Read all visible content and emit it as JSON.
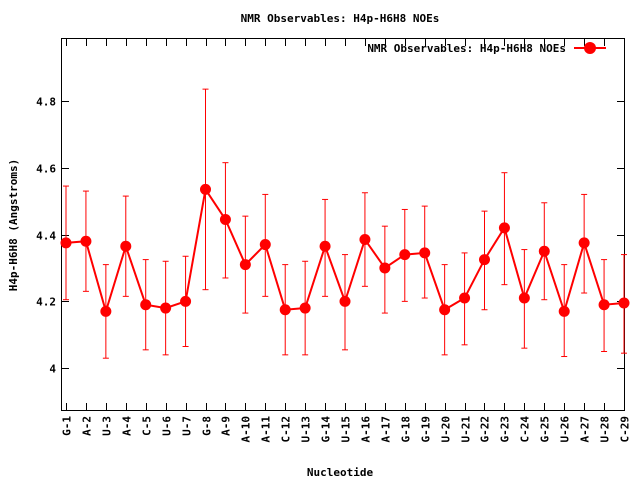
{
  "chart_data": {
    "type": "line",
    "title": "NMR Observables: H4p-H6H8 NOEs",
    "xlabel": "Nucleotide",
    "ylabel": "H4p-H6H8 (Angstroms)",
    "ylim": [
      3.875,
      4.985
    ],
    "yticks": [
      "4",
      "4.2",
      "4.4",
      "4.6",
      "4.8"
    ],
    "grid": false,
    "legend_position": "top-right",
    "series_color": "#ff0000",
    "categories": [
      "G-1",
      "A-2",
      "U-3",
      "A-4",
      "C-5",
      "U-6",
      "U-7",
      "G-8",
      "A-9",
      "A-10",
      "A-11",
      "C-12",
      "U-13",
      "G-14",
      "U-15",
      "A-16",
      "A-17",
      "G-18",
      "G-19",
      "U-20",
      "U-21",
      "G-22",
      "G-23",
      "C-24",
      "G-25",
      "U-26",
      "A-27",
      "U-28",
      "C-29"
    ],
    "series": [
      {
        "name": "NMR Observables: H4p-H6H8 NOEs",
        "values": [
          4.375,
          4.38,
          4.17,
          4.365,
          4.19,
          4.18,
          4.2,
          4.535,
          4.445,
          4.31,
          4.37,
          4.175,
          4.18,
          4.365,
          4.2,
          4.385,
          4.3,
          4.34,
          4.345,
          4.175,
          4.21,
          4.325,
          4.42,
          4.21,
          4.35,
          4.17,
          4.375,
          4.19,
          4.195
        ],
        "err_low": [
          4.205,
          4.23,
          4.03,
          4.215,
          4.055,
          4.04,
          4.065,
          4.235,
          4.27,
          4.165,
          4.215,
          4.04,
          4.04,
          4.215,
          4.055,
          4.245,
          4.165,
          4.2,
          4.21,
          4.04,
          4.07,
          4.175,
          4.25,
          4.06,
          4.205,
          4.035,
          4.225,
          4.05,
          4.045
        ],
        "err_high": [
          4.545,
          4.53,
          4.31,
          4.515,
          4.325,
          4.32,
          4.335,
          4.835,
          4.615,
          4.455,
          4.52,
          4.31,
          4.32,
          4.505,
          4.34,
          4.525,
          4.425,
          4.475,
          4.485,
          4.31,
          4.345,
          4.47,
          4.585,
          4.355,
          4.495,
          4.31,
          4.52,
          4.325,
          4.34
        ]
      }
    ]
  }
}
